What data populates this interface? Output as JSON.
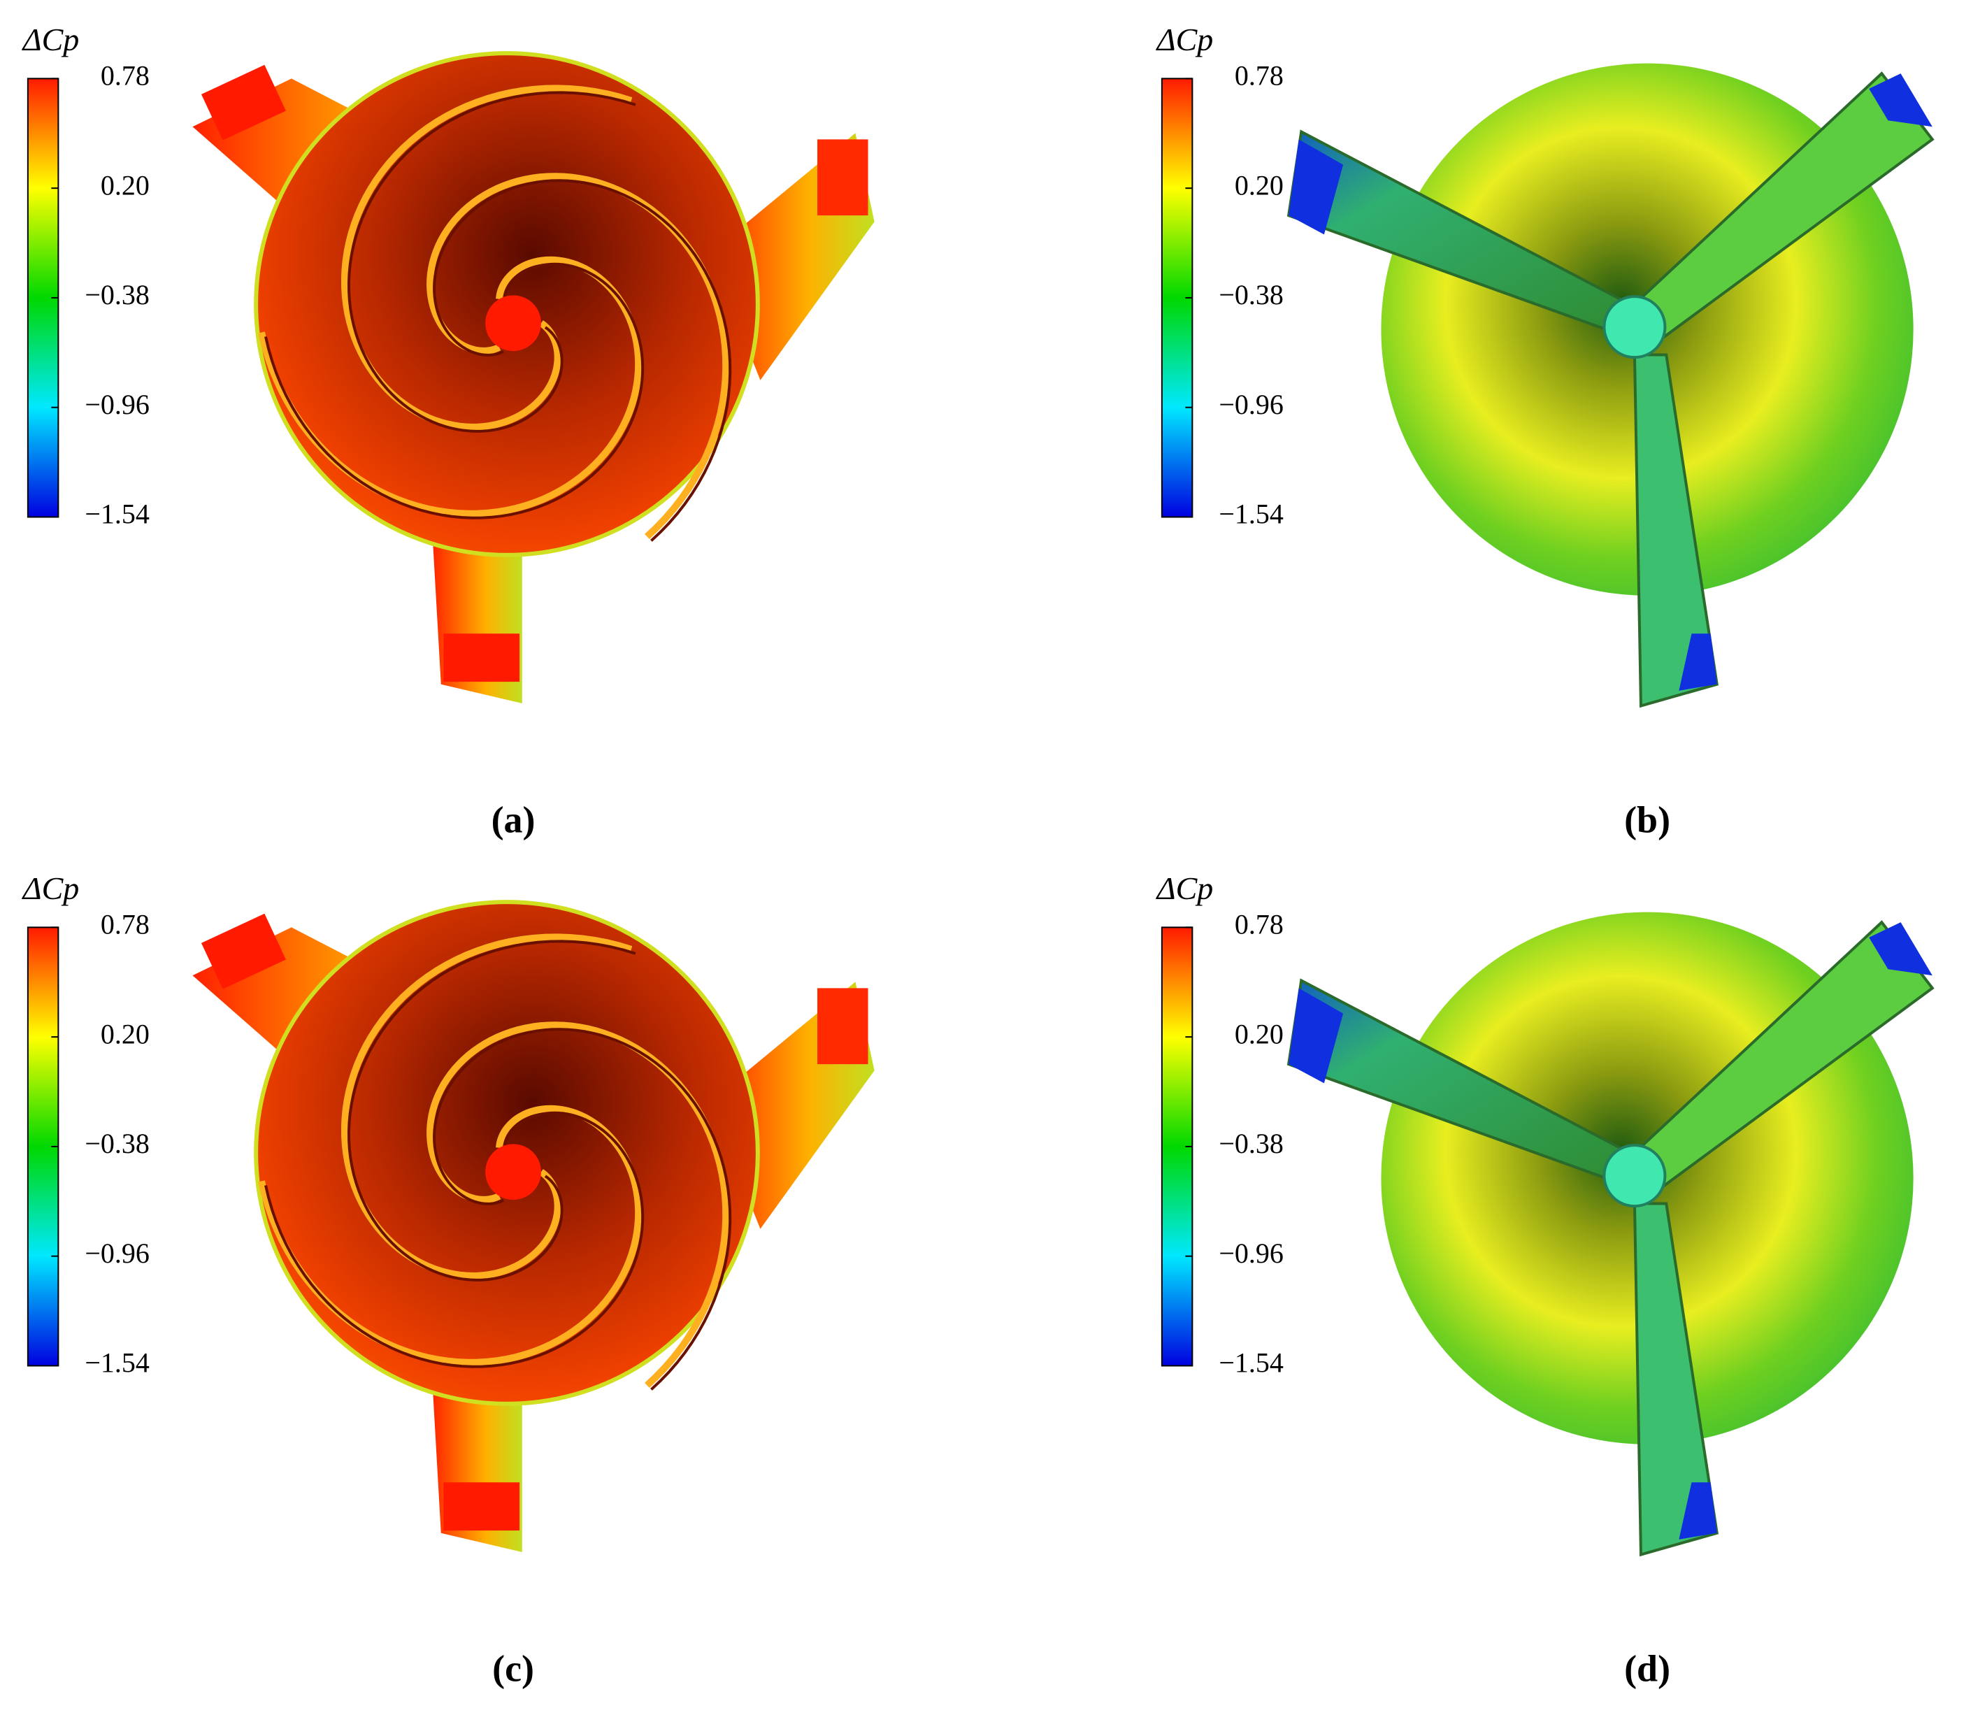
{
  "chart_data": [
    {
      "type": "contour",
      "title": "ΔCp",
      "label": "(a)",
      "field": "spiral",
      "colormap": [
        "#0000e0",
        "#00e8ff",
        "#00d800",
        "#ffff00",
        "#ff1a00"
      ],
      "ylim": [
        -1.54,
        0.78
      ],
      "yticks": [
        {
          "value": -1.54,
          "label": "−1.54"
        },
        {
          "value": -0.96,
          "label": "−0.96"
        },
        {
          "value": -0.38,
          "label": "−0.38"
        },
        {
          "value": 0.2,
          "label": "0.20"
        },
        0.78
      ]
    },
    {
      "type": "contour",
      "title": "ΔCp",
      "label": "(b)",
      "field": "blades",
      "colormap": [
        "#0000e0",
        "#00e8ff",
        "#00d800",
        "#ffff00",
        "#ff1a00"
      ],
      "ylim": [
        -1.54,
        0.78
      ],
      "yticks": [
        {
          "value": -1.54,
          "label": "−1.54"
        },
        {
          "value": -0.96,
          "label": "−0.96"
        },
        {
          "value": -0.38,
          "label": "−0.38"
        },
        {
          "value": 0.2,
          "label": "0.20"
        },
        0.78
      ]
    },
    {
      "type": "contour",
      "title": "ΔCp",
      "label": "(c)",
      "field": "spiral",
      "colormap": [
        "#0000e0",
        "#00e8ff",
        "#00d800",
        "#ffff00",
        "#ff1a00"
      ],
      "ylim": [
        -1.54,
        0.78
      ],
      "yticks": [
        {
          "value": -1.54,
          "label": "−1.54"
        },
        {
          "value": -0.96,
          "label": "−0.96"
        },
        {
          "value": -0.38,
          "label": "−0.38"
        },
        {
          "value": 0.2,
          "label": "0.20"
        },
        0.78
      ]
    },
    {
      "type": "contour",
      "title": "ΔCp",
      "label": "(d)",
      "field": "blades",
      "colormap": [
        "#0000e0",
        "#00e8ff",
        "#00d800",
        "#ffff00",
        "#ff1a00"
      ],
      "ylim": [
        -1.54,
        0.78
      ],
      "yticks": [
        {
          "value": -1.54,
          "label": "−1.54"
        },
        {
          "value": -0.96,
          "label": "−0.96"
        },
        {
          "value": -0.38,
          "label": "−0.38"
        },
        {
          "value": 0.2,
          "label": "0.20"
        },
        0.78
      ]
    }
  ]
}
